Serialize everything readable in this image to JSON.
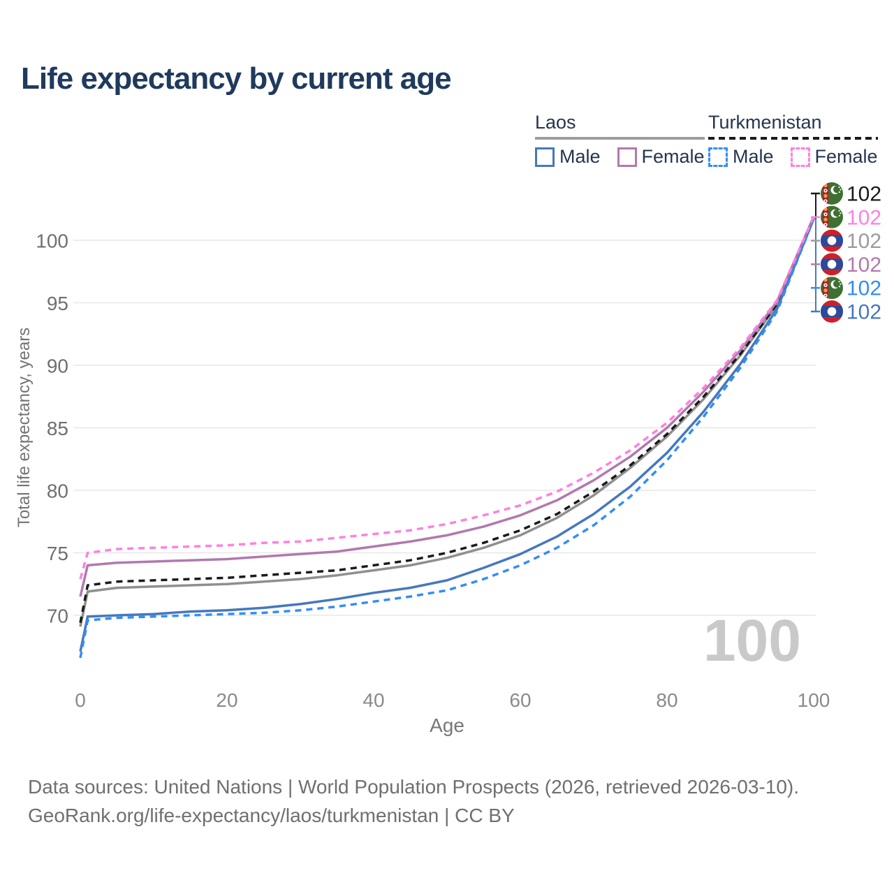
{
  "title": "Life expectancy by current age",
  "legend": {
    "groups": [
      {
        "id": "laos",
        "label": "Laos",
        "line_style": "solid",
        "line_color": "#9e9e9e",
        "items": [
          {
            "label": "Male",
            "color": "#4678be",
            "style": "solid"
          },
          {
            "label": "Female",
            "color": "#b279ae",
            "style": "solid"
          }
        ]
      },
      {
        "id": "turkmenistan",
        "label": "Turkmenistan",
        "line_style": "dashed",
        "line_color": "#1a1a1a",
        "items": [
          {
            "label": "Male",
            "color": "#338df6",
            "style": "dashed"
          },
          {
            "label": "Female",
            "color": "#ff80e1",
            "style": "dashed"
          }
        ]
      }
    ]
  },
  "chart_data": {
    "type": "line",
    "title": "Life expectancy by current age",
    "xlabel": "Age",
    "ylabel": "Total life expectancy, years",
    "x_ticks": [
      0,
      20,
      40,
      60,
      80,
      100
    ],
    "y_ticks": [
      70,
      75,
      80,
      85,
      90,
      95,
      100
    ],
    "xlim": [
      0,
      100
    ],
    "ylim": [
      66.5,
      103.5
    ],
    "grid": "horizontal",
    "watermark": "100",
    "x": [
      0,
      1,
      5,
      10,
      15,
      20,
      25,
      30,
      35,
      40,
      45,
      50,
      55,
      60,
      65,
      70,
      75,
      80,
      85,
      90,
      95,
      100
    ],
    "series": [
      {
        "id": "laos-total",
        "name": "Laos — Total",
        "color": "#8f8f8f",
        "dashed": false,
        "values": [
          69.1,
          71.9,
          72.2,
          72.3,
          72.4,
          72.5,
          72.7,
          72.9,
          73.2,
          73.6,
          74.0,
          74.6,
          75.4,
          76.4,
          77.8,
          79.6,
          81.8,
          84.3,
          87.3,
          90.8,
          94.8,
          101.8
        ]
      },
      {
        "id": "tkm-total",
        "name": "Turkmenistan — Total",
        "color": "#1a1a1a",
        "dashed": true,
        "values": [
          69.4,
          72.4,
          72.7,
          72.8,
          72.9,
          73.0,
          73.2,
          73.4,
          73.6,
          74.0,
          74.4,
          75.0,
          75.8,
          76.8,
          78.1,
          79.9,
          82.0,
          84.5,
          87.5,
          90.9,
          94.9,
          101.8
        ]
      },
      {
        "id": "laos-male",
        "name": "Laos — Male",
        "color": "#4678be",
        "dashed": false,
        "values": [
          67.1,
          69.9,
          70.0,
          70.1,
          70.3,
          70.4,
          70.6,
          70.9,
          71.3,
          71.8,
          72.2,
          72.8,
          73.8,
          74.9,
          76.3,
          78.1,
          80.3,
          83.0,
          86.3,
          90.1,
          94.5,
          101.7
        ]
      },
      {
        "id": "tkm-male",
        "name": "Turkmenistan — Male",
        "color": "#338df6",
        "dashed": true,
        "values": [
          66.6,
          69.6,
          69.8,
          69.9,
          70.0,
          70.1,
          70.2,
          70.4,
          70.7,
          71.1,
          71.5,
          72.0,
          72.9,
          74.0,
          75.4,
          77.2,
          79.5,
          82.4,
          85.9,
          89.8,
          94.3,
          101.7
        ]
      },
      {
        "id": "laos-female",
        "name": "Laos — Female",
        "color": "#b279ae",
        "dashed": false,
        "values": [
          71.5,
          74.0,
          74.2,
          74.3,
          74.4,
          74.5,
          74.7,
          74.9,
          75.1,
          75.5,
          75.9,
          76.4,
          77.1,
          78.0,
          79.2,
          80.8,
          82.7,
          85.0,
          87.9,
          91.2,
          95.1,
          101.9
        ]
      },
      {
        "id": "tkm-female",
        "name": "Turkmenistan — Female",
        "color": "#ff80e1",
        "dashed": true,
        "values": [
          72.9,
          75.0,
          75.3,
          75.4,
          75.5,
          75.6,
          75.8,
          75.9,
          76.2,
          76.5,
          76.8,
          77.3,
          78.0,
          78.8,
          79.9,
          81.4,
          83.2,
          85.4,
          88.2,
          91.4,
          95.2,
          101.9
        ]
      }
    ]
  },
  "end_labels": [
    {
      "series": "tkm-total",
      "flag": "turkmenistan",
      "value": "102",
      "color": "#1a1a1a"
    },
    {
      "series": "tkm-female",
      "flag": "turkmenistan",
      "value": "102",
      "color": "#ff80e1"
    },
    {
      "series": "laos-total",
      "flag": "laos",
      "value": "102",
      "color": "#9b9b9b"
    },
    {
      "series": "laos-female",
      "flag": "laos",
      "value": "102",
      "color": "#b279ae"
    },
    {
      "series": "tkm-male",
      "flag": "turkmenistan",
      "value": "102",
      "color": "#338df6"
    },
    {
      "series": "laos-male",
      "flag": "laos",
      "value": "102",
      "color": "#4678be"
    }
  ],
  "footer": {
    "line1": "Data sources: United Nations | World Population Prospects (2026, retrieved 2026-03-10).",
    "line2": "GeoRank.org/life-expectancy/laos/turkmenistan | CC BY"
  }
}
